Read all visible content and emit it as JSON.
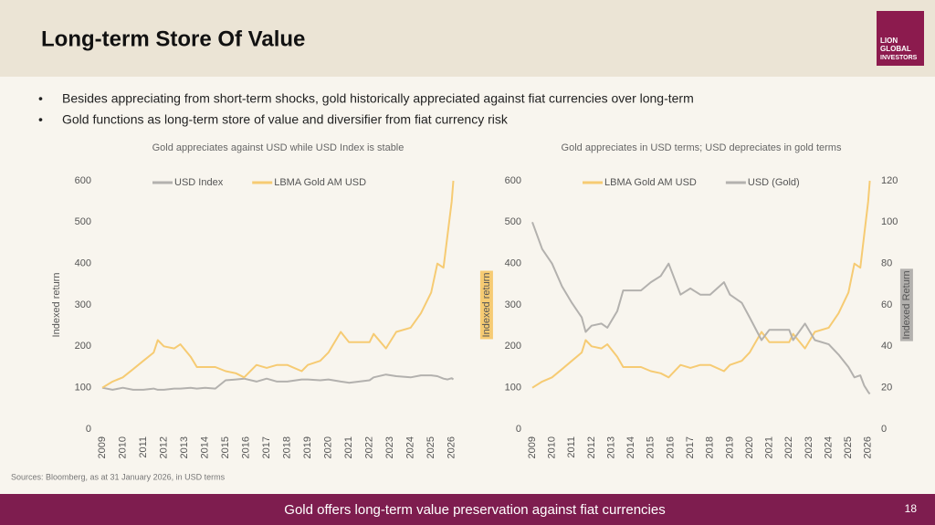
{
  "header": {
    "title": "Long-term Store Of Value",
    "logo": [
      "LION",
      "GLOBAL",
      "INVESTORS"
    ]
  },
  "bullets": [
    "Besides appreciating from short-term shocks, gold historically appreciated against fiat currencies over long-term",
    "Gold functions as long-term store of value and diversifier from fiat currency risk"
  ],
  "sources": "Sources: Bloomberg, as at 31 January 2026, in USD terms",
  "footer": {
    "text": "Gold offers long-term value preservation against fiat currencies",
    "page": 18
  },
  "chart_data": [
    {
      "type": "line",
      "title": "Gold appreciates against USD while USD Index is stable",
      "y_label": "Indexed return",
      "legend": "top",
      "x": [
        2009,
        2009.5,
        2010,
        2010.5,
        2011,
        2011.5,
        2011.7,
        2012,
        2012.5,
        2012.8,
        2013.3,
        2013.6,
        2014,
        2014.5,
        2015,
        2015.5,
        2015.9,
        2016.5,
        2017,
        2017.5,
        2018,
        2018.7,
        2019,
        2019.6,
        2020,
        2020.6,
        2021,
        2021.5,
        2022,
        2022.2,
        2022.8,
        2023.3,
        2024,
        2024.5,
        2025,
        2025.3,
        2025.6,
        2025.8,
        2026,
        2026.08
      ],
      "series": [
        {
          "name": "USD Index",
          "color": "#b3b1ae",
          "values": [
            100,
            95,
            100,
            95,
            95,
            98,
            95,
            95,
            98,
            98,
            100,
            98,
            100,
            98,
            118,
            120,
            122,
            115,
            122,
            115,
            115,
            120,
            120,
            118,
            120,
            115,
            112,
            115,
            118,
            125,
            132,
            128,
            125,
            130,
            130,
            128,
            122,
            120,
            123,
            120
          ]
        },
        {
          "name": "LBMA Gold AM USD",
          "color": "#f6cb73",
          "values": [
            100,
            115,
            125,
            145,
            165,
            185,
            215,
            200,
            195,
            205,
            175,
            150,
            150,
            150,
            140,
            135,
            125,
            155,
            148,
            155,
            155,
            140,
            155,
            165,
            185,
            235,
            210,
            210,
            210,
            230,
            195,
            235,
            245,
            280,
            330,
            400,
            390,
            470,
            550,
            600
          ]
        }
      ],
      "xlim": [
        2009,
        2026.1
      ],
      "xticks": [
        2009,
        2010,
        2011,
        2012,
        2013,
        2014,
        2015,
        2016,
        2017,
        2018,
        2019,
        2020,
        2021,
        2022,
        2023,
        2024,
        2025,
        2026
      ],
      "ylim": [
        0,
        600
      ],
      "yticks": [
        0,
        100,
        200,
        300,
        400,
        500,
        600
      ]
    },
    {
      "type": "line",
      "title": "Gold appreciates in USD terms; USD depreciates in gold terms",
      "y_label": "Indexed return",
      "y2_label": "Indexed Return",
      "legend": "top",
      "x": [
        2009,
        2009.5,
        2010,
        2010.5,
        2011,
        2011.5,
        2011.7,
        2012,
        2012.5,
        2012.8,
        2013.3,
        2013.6,
        2014,
        2014.5,
        2015,
        2015.5,
        2015.9,
        2016.5,
        2017,
        2017.5,
        2018,
        2018.7,
        2019,
        2019.6,
        2020,
        2020.6,
        2021,
        2021.5,
        2022,
        2022.2,
        2022.8,
        2023.3,
        2024,
        2024.5,
        2025,
        2025.3,
        2025.6,
        2025.8,
        2026,
        2026.08
      ],
      "series": [
        {
          "name": "LBMA Gold AM USD",
          "color": "#f6cb73",
          "values": [
            100,
            115,
            125,
            145,
            165,
            185,
            215,
            200,
            195,
            205,
            175,
            150,
            150,
            150,
            140,
            135,
            125,
            155,
            148,
            155,
            155,
            140,
            155,
            165,
            185,
            235,
            210,
            210,
            210,
            230,
            195,
            235,
            245,
            280,
            330,
            400,
            390,
            470,
            550,
            600
          ]
        },
        {
          "name": "USD (Gold)",
          "color": "#b3b1ae",
          "axis": "y2",
          "values": [
            100,
            87,
            80,
            69,
            61,
            54,
            47,
            50,
            51,
            49,
            57,
            67,
            67,
            67,
            71,
            74,
            80,
            65,
            68,
            65,
            65,
            71,
            65,
            61,
            54,
            43,
            48,
            48,
            48,
            43,
            51,
            43,
            41,
            36,
            30,
            25,
            26,
            21,
            18,
            17
          ]
        }
      ],
      "xlim": [
        2009,
        2026.1
      ],
      "xticks": [
        2009,
        2010,
        2011,
        2012,
        2013,
        2014,
        2015,
        2016,
        2017,
        2018,
        2019,
        2020,
        2021,
        2022,
        2023,
        2024,
        2025,
        2026
      ],
      "ylim": [
        0,
        600
      ],
      "yticks": [
        0,
        100,
        200,
        300,
        400,
        500,
        600
      ],
      "y2lim": [
        0,
        120
      ],
      "y2ticks": [
        0,
        20,
        40,
        60,
        80,
        100,
        120
      ]
    }
  ]
}
